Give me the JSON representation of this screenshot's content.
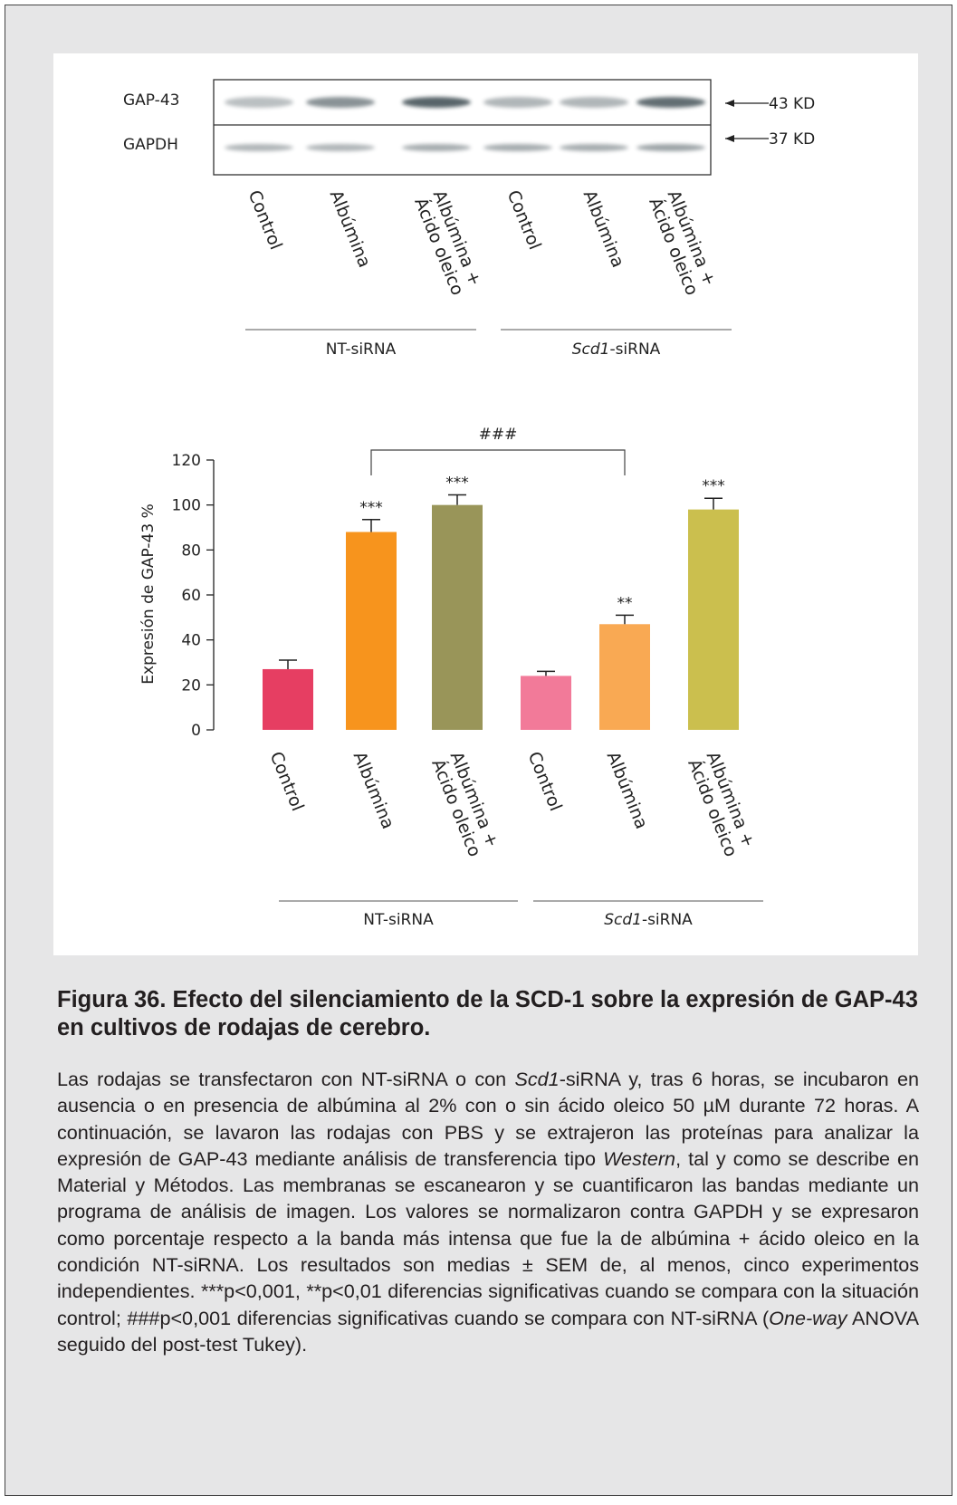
{
  "blot": {
    "rows": [
      "GAP-43",
      "GAPDH"
    ],
    "markers": [
      "43 KD",
      "37 KD"
    ],
    "lanes": [
      "Control",
      "Albúmina",
      "Albúmina +\nÁcido oleico",
      "Control",
      "Albúmina",
      "Albúmina +\nÁcido oleico"
    ],
    "groups": [
      [
        "NT-siRNA"
      ],
      [
        "Scd1",
        "-siRNA"
      ]
    ]
  },
  "chart_data": {
    "type": "bar",
    "y_label": "Expresión de GAP-43 %",
    "categories": [
      "Control",
      "Albúmina",
      "Albúmina +\nÁcido oleico",
      "Control",
      "Albúmina",
      "Albúmina +\nÁcido oleico"
    ],
    "groups": [
      [
        "NT-siRNA"
      ],
      [
        "Scd1",
        "-siRNA"
      ]
    ],
    "values": [
      27,
      88,
      100,
      24,
      47,
      98
    ],
    "errors": [
      4,
      5.5,
      4.5,
      2,
      4,
      5
    ],
    "colors": [
      "#e63e62",
      "#f7941d",
      "#999559",
      "#f27a99",
      "#f9a953",
      "#cbbf4e"
    ],
    "ylim": [
      0,
      120
    ],
    "yticks": [
      0,
      20,
      40,
      60,
      80,
      100,
      120
    ],
    "annotations": [
      "***",
      "***",
      "**",
      "***"
    ],
    "bracket_label": "###"
  },
  "caption": {
    "title": "Figura 36. Efecto del silenciamiento de la SCD-1 sobre la expresión de GAP-43 en cultivos de rodajas de cerebro.",
    "parts": [
      "Las rodajas se transfectaron con NT-siRNA o con ",
      "Scd1",
      "-siRNA y, tras 6 horas, se incubaron en ausencia o en presencia de albúmina al 2% con o sin ácido oleico 50 µM durante 72 horas. A continuación, se lavaron las rodajas con PBS y se extrajeron las proteínas para analizar la expresión de GAP-43 mediante análisis de transferencia tipo ",
      "Western",
      ", tal y como se describe en Material y Métodos. Las membranas se escanearon y se cuantificaron las bandas mediante un programa de análisis de imagen. Los valores se normalizaron contra GAPDH y se expresaron como porcentaje respecto a la banda más intensa que fue la de albúmina + ácido oleico en la condición NT-siRNA. Los resultados son medias ± SEM de, al menos, cinco experimentos independientes. ***p<0,001, **p<0,01 diferencias significativas cuando se compara con la situación control; ###p<0,001 diferencias significativas cuando se compara con NT-siRNA (",
      "One-way",
      " ANOVA seguido del post-test Tukey)."
    ]
  }
}
